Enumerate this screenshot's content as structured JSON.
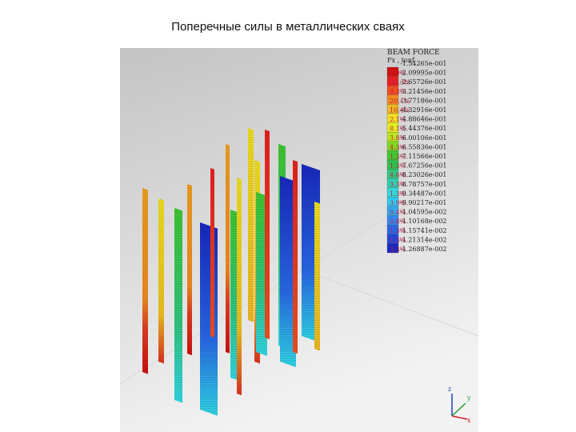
{
  "title": "Поперечные силы в металлических сваях",
  "legend": {
    "title": "BEAM FORCE",
    "unit": "Fx , tonf",
    "values": [
      "-1.54265e-001",
      "-2.09995e-001",
      "-2.65726e-001",
      "-3.21456e-001",
      "-3.77186e-001",
      "-4.32916e-001",
      "-4.88646e-001",
      "-5.44376e-001",
      "-6.00106e-001",
      "-6.55836e-001",
      "-7.11566e-001",
      "-7.67256e-001",
      "-8.23026e-001",
      "-8.78757e-001",
      "-9.34487e-001",
      "-9.90217e-001",
      "-1.04595e-002",
      "-1.10168e-002",
      "-1.15741e-002",
      "-1.21314e-002",
      "-1.26887e-002"
    ],
    "bands": [
      {
        "label": "7.9%",
        "color": "#d01010"
      },
      {
        "label": "28.3%",
        "color": "#e82020"
      },
      {
        "label": "4.3%",
        "color": "#f05020"
      },
      {
        "label": "20.1%",
        "color": "#f08a20"
      },
      {
        "label": "10.4%",
        "color": "#f0b820"
      },
      {
        "label": "2.1%",
        "color": "#f0e020"
      },
      {
        "label": "8.1%",
        "color": "#e0f020"
      },
      {
        "label": "3.8%",
        "color": "#b8e820"
      },
      {
        "label": "4.3%",
        "color": "#80d820"
      },
      {
        "label": "1.3%",
        "color": "#40c830"
      },
      {
        "label": "1.3%",
        "color": "#30c050"
      },
      {
        "label": "4.6%",
        "color": "#30c880"
      },
      {
        "label": "3.3%",
        "color": "#30d0b0"
      },
      {
        "label": "1.3%",
        "color": "#30d8d8"
      },
      {
        "label": "3.9%",
        "color": "#30c8f0"
      },
      {
        "label": "0.4%",
        "color": "#30a8f0"
      },
      {
        "label": "0.8%",
        "color": "#3088f0"
      },
      {
        "label": "1.3%",
        "color": "#2868e8"
      },
      {
        "label": "1.3%",
        "color": "#2048d8"
      },
      {
        "label": "3.3%",
        "color": "#1828c0"
      }
    ]
  },
  "axes": {
    "z": "z",
    "y": "y",
    "x": "x"
  }
}
